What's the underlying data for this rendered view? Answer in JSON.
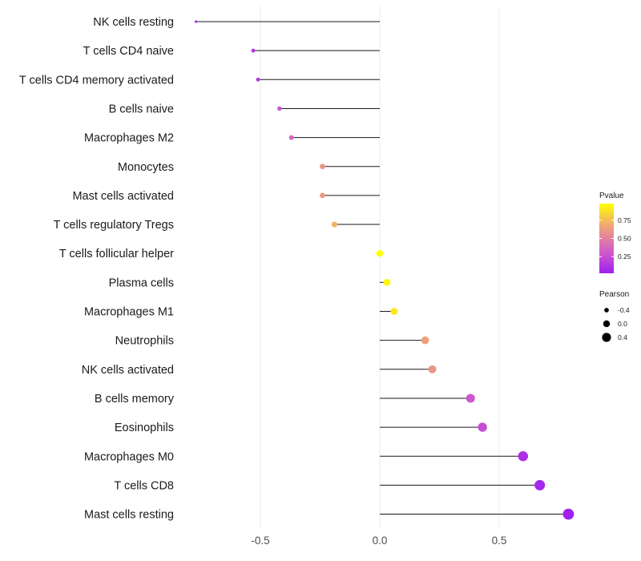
{
  "chart_data": {
    "type": "lollipop",
    "title": "",
    "xlabel": "",
    "ylabel": "",
    "xlim": [
      -0.83,
      0.86
    ],
    "x_ticks": [
      -0.5,
      0.0,
      0.5
    ],
    "x_tick_labels": [
      "-0.5",
      "0.0",
      "0.5"
    ],
    "grid": "vertical major lines",
    "categories": [
      "NK cells resting",
      "T cells CD4 naive",
      "T cells CD4 memory activated",
      "B cells naive",
      "Macrophages M2",
      "Monocytes",
      "Mast cells activated",
      "T cells regulatory  Tregs ",
      "T cells follicular helper",
      "Plasma cells",
      "Macrophages M1",
      "Neutrophils",
      "NK cells activated",
      "B cells memory",
      "Eosinophils",
      "Macrophages M0",
      "T cells CD8",
      "Mast cells resting"
    ],
    "pearson": [
      -0.77,
      -0.53,
      -0.51,
      -0.42,
      -0.37,
      -0.24,
      -0.24,
      -0.19,
      0.0,
      0.03,
      0.06,
      0.19,
      0.22,
      0.38,
      0.43,
      0.6,
      0.67,
      0.79
    ],
    "pvalue": [
      0.08,
      0.12,
      0.15,
      0.3,
      0.36,
      0.6,
      0.62,
      0.72,
      1.0,
      0.95,
      0.9,
      0.65,
      0.6,
      0.3,
      0.25,
      0.1,
      0.05,
      0.02
    ],
    "legend_pvalue": {
      "title": "Pvalue",
      "ticks": [
        0.75,
        0.5,
        0.25
      ],
      "tick_labels": [
        "0.75",
        "0.50",
        "0.25"
      ],
      "range": [
        0.02,
        0.98
      ],
      "colors": [
        "#A020F0",
        "#FFFF00"
      ]
    },
    "legend_pearson": {
      "title": "Pearson",
      "values": [
        -0.4,
        0.0,
        0.4
      ],
      "labels": [
        "-0.4",
        "0.0",
        "0.4"
      ]
    }
  }
}
